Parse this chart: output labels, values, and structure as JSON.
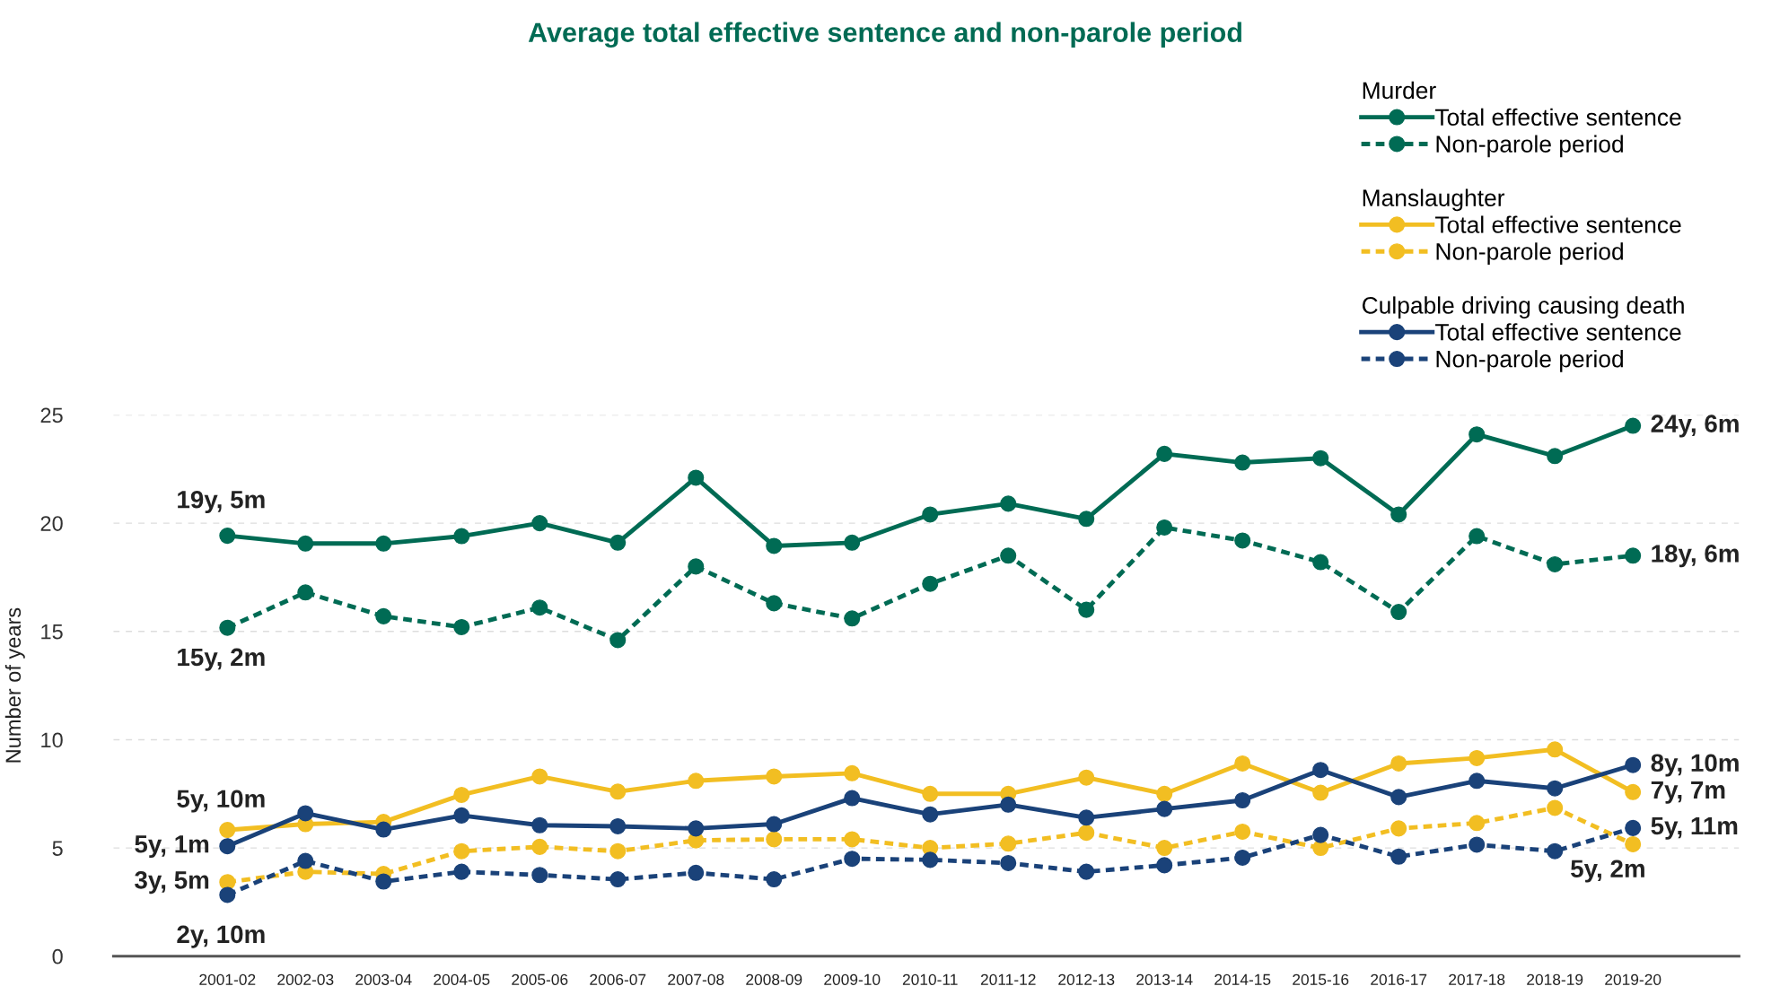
{
  "chart_data": {
    "type": "line",
    "title": "Average total effective sentence and non-parole period",
    "ylabel": "Number of years",
    "categories": [
      "2001-02",
      "2002-03",
      "2003-04",
      "2004-05",
      "2005-06",
      "2006-07",
      "2007-08",
      "2008-09",
      "2009-10",
      "2010-11",
      "2011-12",
      "2012-13",
      "2013-14",
      "2014-15",
      "2015-16",
      "2016-17",
      "2017-18",
      "2018-19",
      "2019-20"
    ],
    "ylim": [
      0,
      25
    ],
    "yticks": [
      0,
      5,
      10,
      15,
      20,
      25
    ],
    "grid": "y",
    "legend": "top right",
    "marker": "circle",
    "series": [
      {
        "name": "Total effective sentence",
        "color": "#006b54",
        "line_style": "solid",
        "values": [
          19.42,
          19.06,
          19.06,
          19.4,
          20.0,
          19.1,
          22.1,
          18.95,
          19.1,
          20.4,
          20.9,
          20.2,
          23.2,
          22.8,
          23.0,
          20.4,
          24.1,
          23.1,
          24.5
        ]
      },
      {
        "name": "Non-parole period",
        "color": "#006b54",
        "line_style": "dashed",
        "values": [
          15.17,
          16.8,
          15.7,
          15.2,
          16.1,
          14.6,
          18.0,
          16.3,
          15.6,
          17.2,
          18.5,
          16.0,
          19.8,
          19.2,
          18.2,
          15.9,
          19.4,
          18.1,
          18.5
        ]
      },
      {
        "name": "Total effective sentence",
        "color": "#f2be22",
        "line_style": "solid",
        "values": [
          5.83,
          6.1,
          6.2,
          7.45,
          8.3,
          7.6,
          8.1,
          8.3,
          8.45,
          7.5,
          7.5,
          8.25,
          7.5,
          8.9,
          7.55,
          8.9,
          9.15,
          9.55,
          7.58
        ]
      },
      {
        "name": "Non-parole period",
        "color": "#f2be22",
        "line_style": "dashed",
        "values": [
          3.42,
          3.9,
          3.8,
          4.85,
          5.05,
          4.85,
          5.35,
          5.4,
          5.4,
          5.0,
          5.2,
          5.7,
          5.0,
          5.75,
          5.0,
          5.9,
          6.15,
          6.85,
          5.17
        ]
      },
      {
        "name": "Total effective sentence",
        "color": "#1a4279",
        "line_style": "solid",
        "values": [
          5.08,
          6.6,
          5.85,
          6.5,
          6.05,
          6.0,
          5.9,
          6.1,
          7.3,
          6.55,
          7.0,
          6.4,
          6.8,
          7.2,
          8.6,
          7.35,
          8.1,
          7.75,
          8.83
        ]
      },
      {
        "name": "Non-parole period",
        "color": "#1a4279",
        "line_style": "dashed",
        "values": [
          2.83,
          4.4,
          3.45,
          3.9,
          3.75,
          3.55,
          3.85,
          3.55,
          4.5,
          4.45,
          4.3,
          3.9,
          4.2,
          4.55,
          5.6,
          4.6,
          5.15,
          4.85,
          5.92
        ]
      }
    ],
    "annotations": [
      "Murder",
      "Manslaughter",
      "Culpable driving causing death",
      {
        "text": "19y, 5m",
        "x": "2001-02",
        "y": 19.42
      },
      {
        "text": "15y, 2m",
        "x": "2001-02",
        "y": 15.17
      },
      {
        "text": "5y, 10m",
        "x": "2001-02",
        "y": 5.83
      },
      {
        "text": "5y, 1m",
        "x": "2001-02",
        "y": 5.08
      },
      {
        "text": "3y, 5m",
        "x": "2001-02",
        "y": 3.42
      },
      {
        "text": "2y, 10m",
        "x": "2001-02",
        "y": 2.83
      },
      {
        "text": "24y, 6m",
        "x": "2019-20",
        "y": 24.5
      },
      {
        "text": "18y, 6m",
        "x": "2019-20",
        "y": 18.5
      },
      {
        "text": "8y, 10m",
        "x": "2019-20",
        "y": 8.83
      },
      {
        "text": "7y, 7m",
        "x": "2019-20",
        "y": 7.58
      },
      {
        "text": "5y, 11m",
        "x": "2019-20",
        "y": 5.92
      },
      {
        "text": "5y, 2m",
        "x": "2019-20",
        "y": 5.17
      }
    ]
  }
}
